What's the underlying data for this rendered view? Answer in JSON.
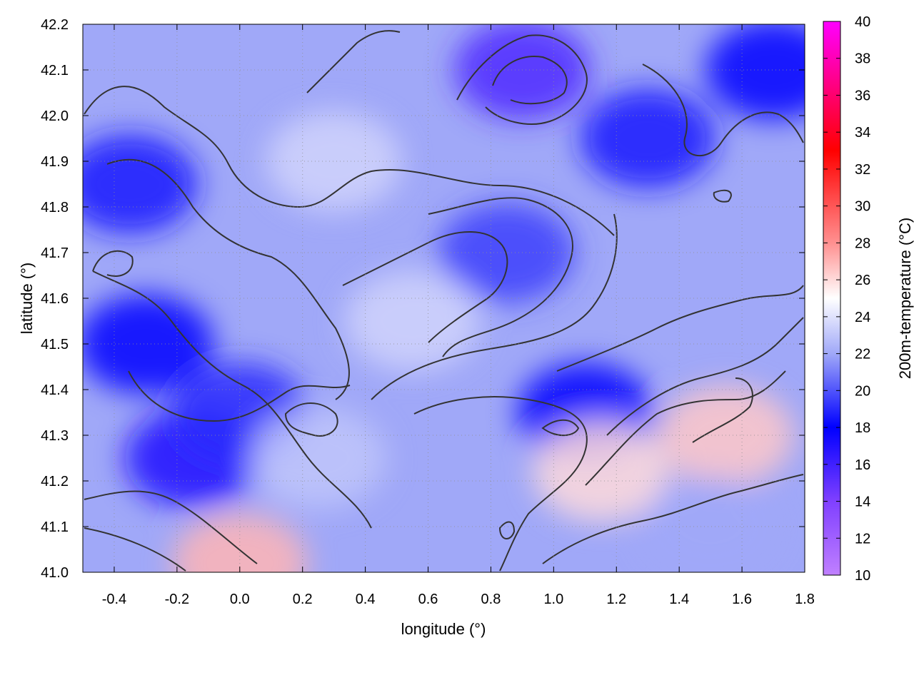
{
  "chart_data": {
    "type": "heatmap",
    "title": "",
    "xlabel": "longitude (°)",
    "ylabel": "latitude (°)",
    "colorbar_label": "200m-temperature (°C)",
    "xlim": [
      -0.5,
      1.8
    ],
    "ylim": [
      41.0,
      42.2
    ],
    "clim": [
      10,
      40
    ],
    "x_ticks": [
      "-0.4",
      "-0.2",
      "0.0",
      "0.2",
      "0.4",
      "0.6",
      "0.8",
      "1.0",
      "1.2",
      "1.4",
      "1.6",
      "1.8"
    ],
    "y_ticks": [
      "41.0",
      "41.1",
      "41.2",
      "41.3",
      "41.4",
      "41.5",
      "41.6",
      "41.7",
      "41.8",
      "41.9",
      "42.0",
      "42.1",
      "42.2"
    ],
    "colorbar_ticks": [
      "10",
      "12",
      "14",
      "16",
      "18",
      "20",
      "22",
      "24",
      "26",
      "28",
      "30",
      "32",
      "34",
      "36",
      "38",
      "40"
    ],
    "grid": true,
    "colormap": [
      {
        "value": 10,
        "color": "#c080ff"
      },
      {
        "value": 14,
        "color": "#8040ff"
      },
      {
        "value": 18,
        "color": "#0000ff"
      },
      {
        "value": 22,
        "color": "#a0a8f8"
      },
      {
        "value": 25,
        "color": "#ffffff"
      },
      {
        "value": 28,
        "color": "#ff9090"
      },
      {
        "value": 33,
        "color": "#ff0000"
      },
      {
        "value": 40,
        "color": "#ff00ff"
      }
    ],
    "temperature_features": [
      {
        "lon": -0.3,
        "lat": 41.5,
        "temp": 18.0
      },
      {
        "lon": -0.15,
        "lat": 41.25,
        "temp": 17.0
      },
      {
        "lon": -0.35,
        "lat": 41.85,
        "temp": 18.5
      },
      {
        "lon": 0.0,
        "lat": 41.35,
        "temp": 19.0
      },
      {
        "lon": 0.9,
        "lat": 42.1,
        "temp": 15.5
      },
      {
        "lon": 0.85,
        "lat": 41.7,
        "temp": 19.5
      },
      {
        "lon": 1.3,
        "lat": 41.95,
        "temp": 18.5
      },
      {
        "lon": 1.7,
        "lat": 42.1,
        "temp": 18.0
      },
      {
        "lon": 1.1,
        "lat": 41.35,
        "temp": 18.0
      },
      {
        "lon": 0.3,
        "lat": 41.9,
        "temp": 23.5
      },
      {
        "lon": 0.25,
        "lat": 41.25,
        "temp": 23.0
      },
      {
        "lon": 0.55,
        "lat": 41.55,
        "temp": 23.5
      },
      {
        "lon": 1.55,
        "lat": 41.3,
        "temp": 26.5
      },
      {
        "lon": 1.15,
        "lat": 41.22,
        "temp": 26.0
      },
      {
        "lon": 0.0,
        "lat": 41.02,
        "temp": 27.0
      },
      {
        "lon": 1.5,
        "lat": 41.1,
        "temp": 22.0
      }
    ],
    "contour_levels": [
      18,
      20,
      22,
      24
    ]
  }
}
